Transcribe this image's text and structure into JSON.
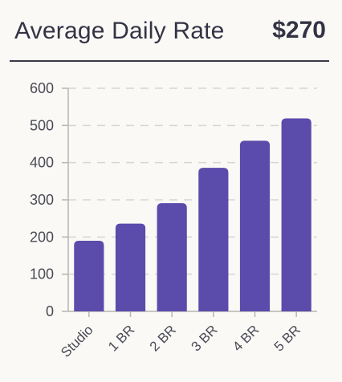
{
  "header": {
    "title": "Average Daily Rate",
    "metric": "$270"
  },
  "colors": {
    "bar": "#5b4bab",
    "grid": "#d8d6d0",
    "axis": "#b8b6b0",
    "text": "#333344"
  },
  "chart_data": {
    "type": "bar",
    "categories": [
      "Studio",
      "1 BR",
      "2 BR",
      "3 BR",
      "4 BR",
      "5 BR"
    ],
    "values": [
      190,
      236,
      291,
      386,
      459,
      519
    ],
    "ylim": [
      0,
      600
    ],
    "yticks": [
      0,
      100,
      200,
      300,
      400,
      500,
      600
    ],
    "xlabel": "",
    "ylabel": "",
    "grid": true,
    "legend": "none"
  }
}
